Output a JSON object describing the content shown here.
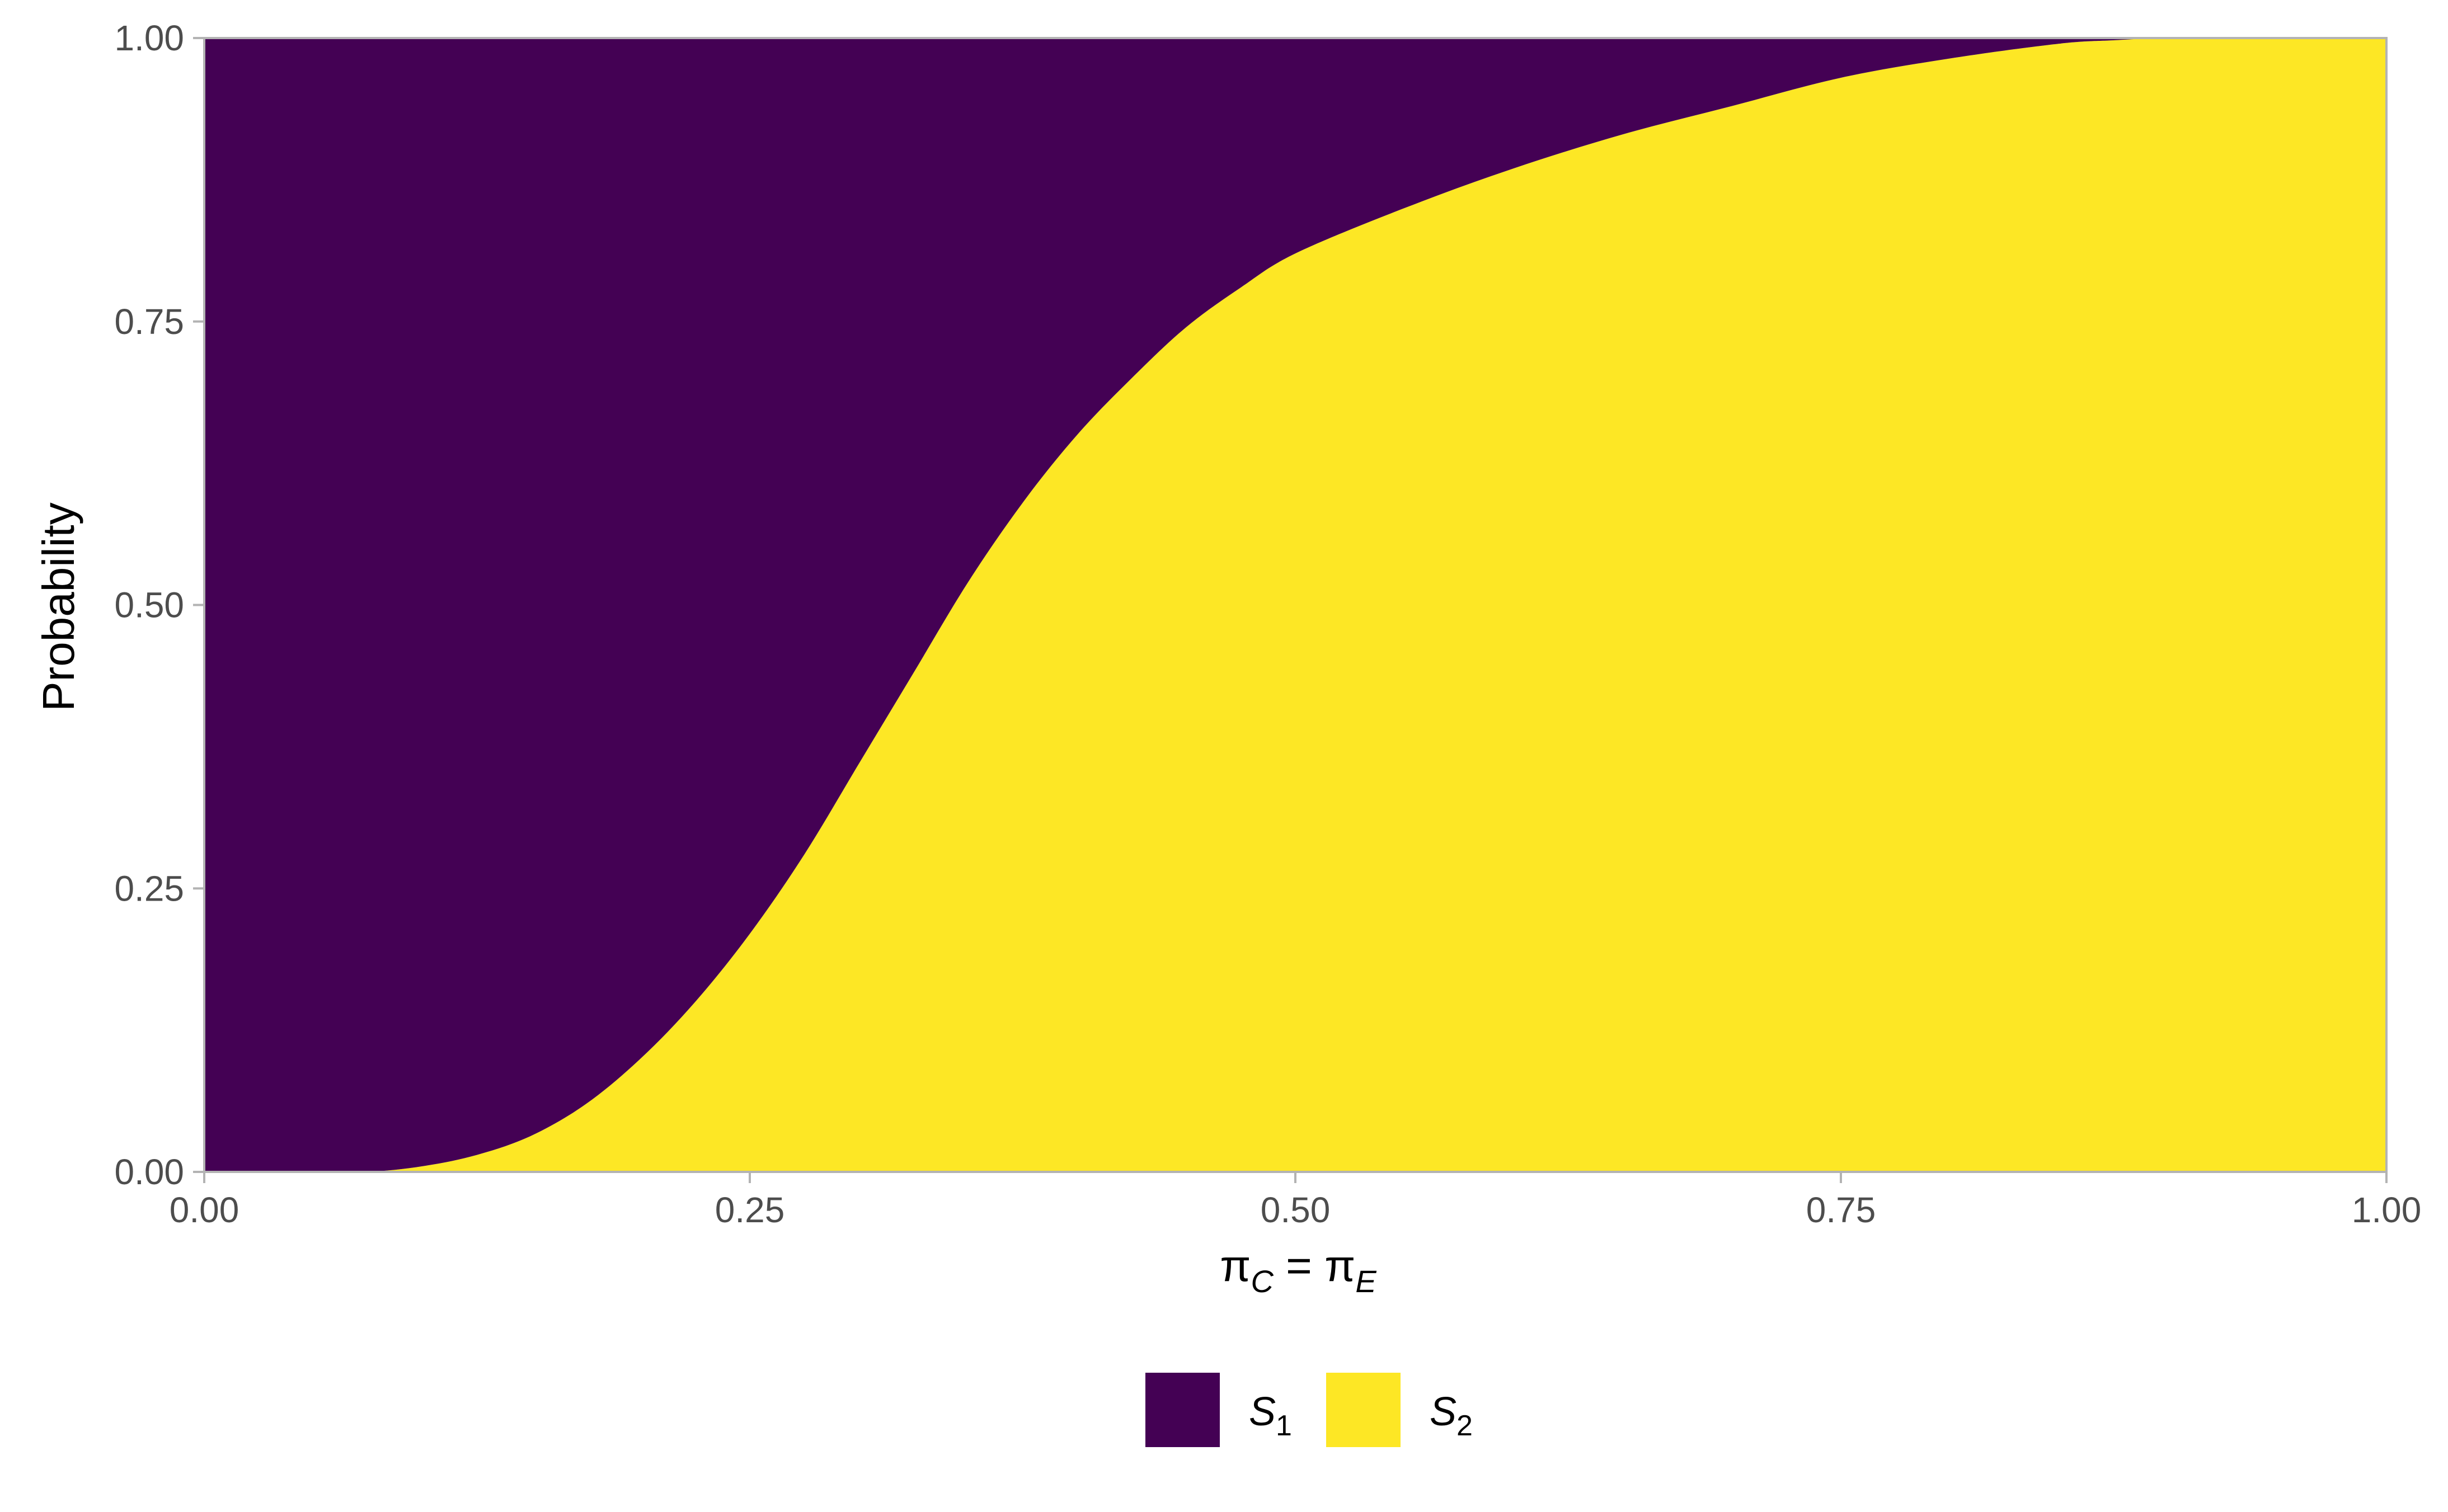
{
  "chart_data": {
    "type": "area",
    "stacked": true,
    "xlabel": {
      "base1": "π",
      "sub1": "C",
      "mid": " = ",
      "base2": "π",
      "sub2": "E"
    },
    "ylabel": "Probability",
    "xlim": [
      0,
      1
    ],
    "ylim": [
      0,
      1
    ],
    "x_ticks": [
      0,
      0.25,
      0.5,
      0.75,
      1
    ],
    "x_tick_labels": [
      "0.00",
      "0.25",
      "0.50",
      "0.75",
      "1.00"
    ],
    "y_ticks": [
      0,
      0.25,
      0.5,
      0.75,
      1
    ],
    "y_tick_labels": [
      "0.00",
      "0.25",
      "0.50",
      "0.75",
      "1.00"
    ],
    "grid": false,
    "legend_position": "bottom",
    "x": [
      0,
      0.05,
      0.075,
      0.1,
      0.125,
      0.15,
      0.175,
      0.2,
      0.225,
      0.25,
      0.275,
      0.3,
      0.325,
      0.35,
      0.375,
      0.4,
      0.425,
      0.45,
      0.475,
      0.5,
      0.55,
      0.6,
      0.65,
      0.7,
      0.75,
      0.8,
      0.85,
      0.875,
      0.9,
      0.95,
      1
    ],
    "series": [
      {
        "name_base": "S",
        "name_sub": "1",
        "color": "#440154",
        "values": [
          1,
          1,
          1,
          0.995,
          0.985,
          0.968,
          0.94,
          0.9,
          0.85,
          0.79,
          0.72,
          0.64,
          0.56,
          0.48,
          0.41,
          0.35,
          0.3,
          0.255,
          0.22,
          0.19,
          0.15,
          0.115,
          0.085,
          0.06,
          0.035,
          0.018,
          0.005,
          0.002,
          0,
          0,
          0
        ]
      },
      {
        "name_base": "S",
        "name_sub": "2",
        "color": "#FDE725",
        "values": [
          0,
          0,
          0,
          0.005,
          0.015,
          0.032,
          0.06,
          0.1,
          0.15,
          0.21,
          0.28,
          0.36,
          0.44,
          0.52,
          0.59,
          0.65,
          0.7,
          0.745,
          0.78,
          0.81,
          0.85,
          0.885,
          0.915,
          0.94,
          0.965,
          0.982,
          0.995,
          0.998,
          1,
          1,
          1
        ]
      }
    ]
  }
}
